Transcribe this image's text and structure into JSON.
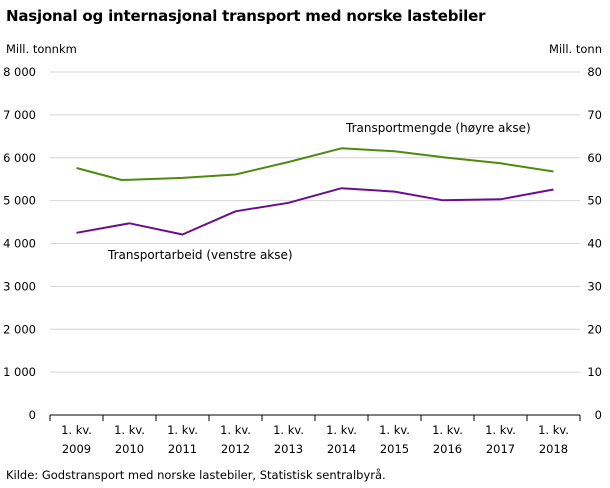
{
  "chart_data": {
    "type": "line",
    "title": "Nasjonal og internasjonal transport med norske lastebiler",
    "ylabel_left": "Mill. tonnkm",
    "ylabel_right": "Mill. tonn",
    "x_labels": [
      [
        "1. kv.",
        "2009"
      ],
      [
        "1. kv.",
        "2010"
      ],
      [
        "1. kv.",
        "2011"
      ],
      [
        "1. kv.",
        "2012"
      ],
      [
        "1. kv.",
        "2013"
      ],
      [
        "1. kv.",
        "2014"
      ],
      [
        "1. kv.",
        "2015"
      ],
      [
        "1. kv.",
        "2016"
      ],
      [
        "1. kv.",
        "2017"
      ],
      [
        "1. kv.",
        "2018"
      ]
    ],
    "ylim_left": [
      0,
      8000
    ],
    "ylim_right": [
      0,
      80
    ],
    "yticks_left": [
      "0",
      "1 000",
      "2 000",
      "3 000",
      "4 000",
      "5 000",
      "6 000",
      "7 000",
      "8 000"
    ],
    "yticks_right": [
      "0",
      "10",
      "20",
      "30",
      "40",
      "50",
      "60",
      "70",
      "80"
    ],
    "grid": true,
    "series": [
      {
        "name": "Transportmengde  (høyre akse)",
        "axis": "right",
        "color": "#4e8a10",
        "points": [
          [
            0.0,
            57.6
          ],
          [
            0.85,
            54.8
          ],
          [
            2.0,
            55.3
          ],
          [
            3.0,
            56.1
          ],
          [
            4.0,
            59.0
          ],
          [
            5.0,
            62.2
          ],
          [
            6.0,
            61.5
          ],
          [
            7.0,
            60.0
          ],
          [
            8.0,
            58.7
          ],
          [
            9.0,
            56.8
          ]
        ]
      },
      {
        "name": "Transportarbeid  (venstre akse)",
        "axis": "left",
        "color": "#6a0f8e",
        "points": [
          [
            0.0,
            4250
          ],
          [
            1.0,
            4470
          ],
          [
            2.0,
            4210
          ],
          [
            3.0,
            4750
          ],
          [
            4.0,
            4950
          ],
          [
            5.0,
            5290
          ],
          [
            6.0,
            5210
          ],
          [
            6.9,
            5010
          ],
          [
            8.0,
            5030
          ],
          [
            9.0,
            5260
          ]
        ]
      }
    ],
    "source": "Kilde: Godstransport med norske lastebiler, Statistisk sentralbyrå."
  }
}
